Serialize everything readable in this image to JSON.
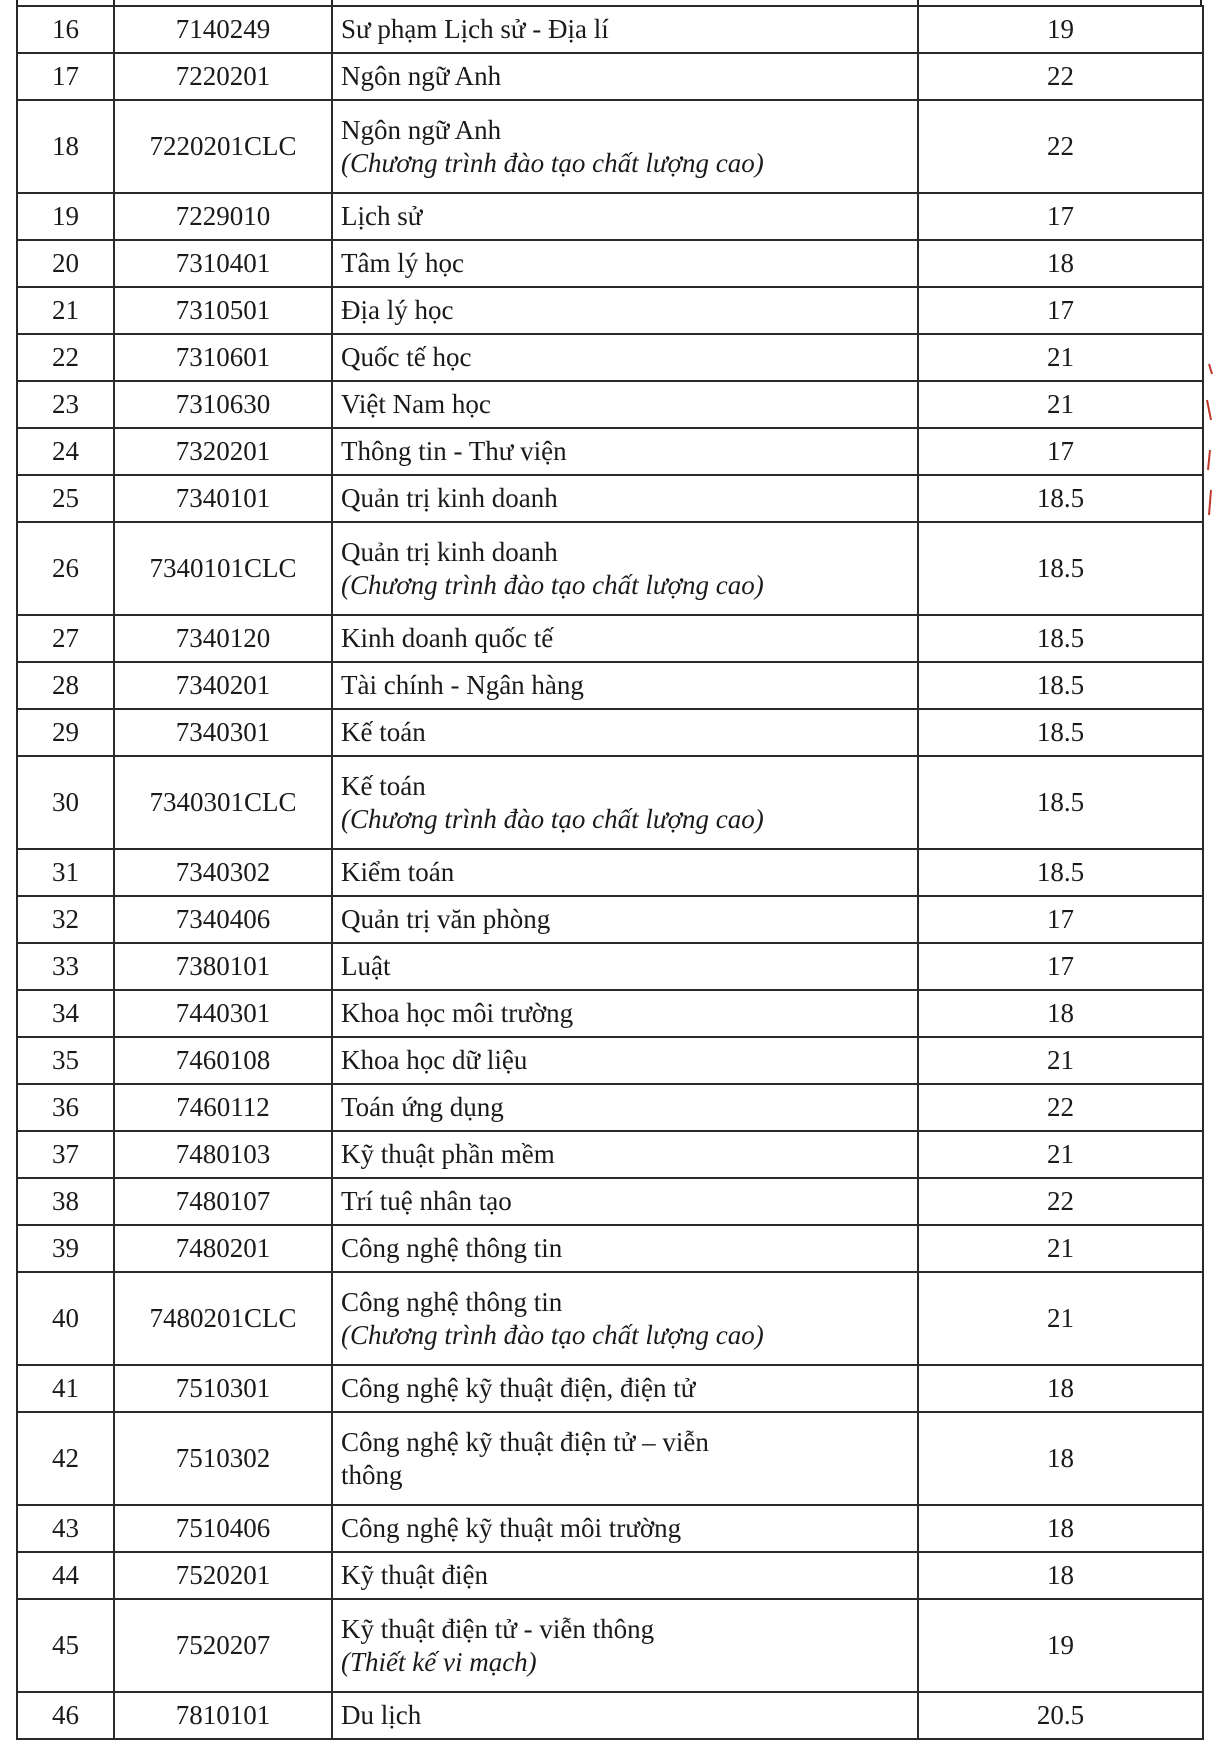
{
  "table": {
    "rows": [
      {
        "stt": "16",
        "code": "7140249",
        "name": "Sư phạm Lịch sử - Địa lí",
        "score": "19"
      },
      {
        "stt": "17",
        "code": "7220201",
        "name": "Ngôn ngữ Anh",
        "score": "22"
      },
      {
        "stt": "18",
        "code": "7220201CLC",
        "name": "Ngôn ngữ Anh",
        "note": "(Chương trình đào tạo chất lượng cao)",
        "score": "22"
      },
      {
        "stt": "19",
        "code": "7229010",
        "name": "Lịch sử",
        "score": "17"
      },
      {
        "stt": "20",
        "code": "7310401",
        "name": "Tâm lý học",
        "score": "18"
      },
      {
        "stt": "21",
        "code": "7310501",
        "name": "Địa lý học",
        "score": "17"
      },
      {
        "stt": "22",
        "code": "7310601",
        "name": "Quốc tế học",
        "score": "21"
      },
      {
        "stt": "23",
        "code": "7310630",
        "name": "Việt Nam học",
        "score": "21"
      },
      {
        "stt": "24",
        "code": "7320201",
        "name": "Thông tin - Thư viện",
        "score": "17"
      },
      {
        "stt": "25",
        "code": "7340101",
        "name": "Quản trị kinh doanh",
        "score": "18.5"
      },
      {
        "stt": "26",
        "code": "7340101CLC",
        "name": "Quản trị kinh doanh",
        "note": "(Chương trình đào tạo chất lượng cao)",
        "score": "18.5"
      },
      {
        "stt": "27",
        "code": "7340120",
        "name": "Kinh doanh quốc tế",
        "score": "18.5"
      },
      {
        "stt": "28",
        "code": "7340201",
        "name": "Tài chính - Ngân hàng",
        "score": "18.5"
      },
      {
        "stt": "29",
        "code": "7340301",
        "name": "Kế toán",
        "score": "18.5"
      },
      {
        "stt": "30",
        "code": "7340301CLC",
        "name": "Kế toán",
        "note": "(Chương trình đào tạo chất lượng cao)",
        "score": "18.5"
      },
      {
        "stt": "31",
        "code": "7340302",
        "name": "Kiểm toán",
        "score": "18.5"
      },
      {
        "stt": "32",
        "code": "7340406",
        "name": "Quản trị văn phòng",
        "score": "17"
      },
      {
        "stt": "33",
        "code": "7380101",
        "name": "Luật",
        "score": "17"
      },
      {
        "stt": "34",
        "code": "7440301",
        "name": "Khoa học môi trường",
        "score": "18"
      },
      {
        "stt": "35",
        "code": "7460108",
        "name": "Khoa học dữ liệu",
        "score": "21"
      },
      {
        "stt": "36",
        "code": "7460112",
        "name": "Toán ứng dụng",
        "score": "22"
      },
      {
        "stt": "37",
        "code": "7480103",
        "name": "Kỹ thuật phần mềm",
        "score": "21"
      },
      {
        "stt": "38",
        "code": "7480107",
        "name": "Trí tuệ nhân tạo",
        "score": "22"
      },
      {
        "stt": "39",
        "code": "7480201",
        "name": "Công nghệ thông tin",
        "score": "21"
      },
      {
        "stt": "40",
        "code": "7480201CLC",
        "name": "Công nghệ thông tin",
        "note": "(Chương trình đào tạo chất lượng cao)",
        "score": "21"
      },
      {
        "stt": "41",
        "code": "7510301",
        "name": "Công nghệ kỹ thuật điện, điện tử",
        "score": "18"
      },
      {
        "stt": "42",
        "code": "7510302",
        "name": "Công nghệ kỹ thuật điện tử – viễn thông",
        "score": "18",
        "wrap": true
      },
      {
        "stt": "43",
        "code": "7510406",
        "name": "Công nghệ kỹ thuật môi trường",
        "score": "18"
      },
      {
        "stt": "44",
        "code": "7520201",
        "name": "Kỹ thuật điện",
        "score": "18"
      },
      {
        "stt": "45",
        "code": "7520207",
        "name": "Kỹ thuật điện tử - viễn thông",
        "note": "(Thiết kế vi mạch)",
        "score": "19"
      },
      {
        "stt": "46",
        "code": "7810101",
        "name": "Du lịch",
        "score": "20.5"
      }
    ]
  },
  "colors": {
    "ink": "#1a1a1a",
    "border": "#2a2a2a",
    "stamp": "#c0392b"
  }
}
